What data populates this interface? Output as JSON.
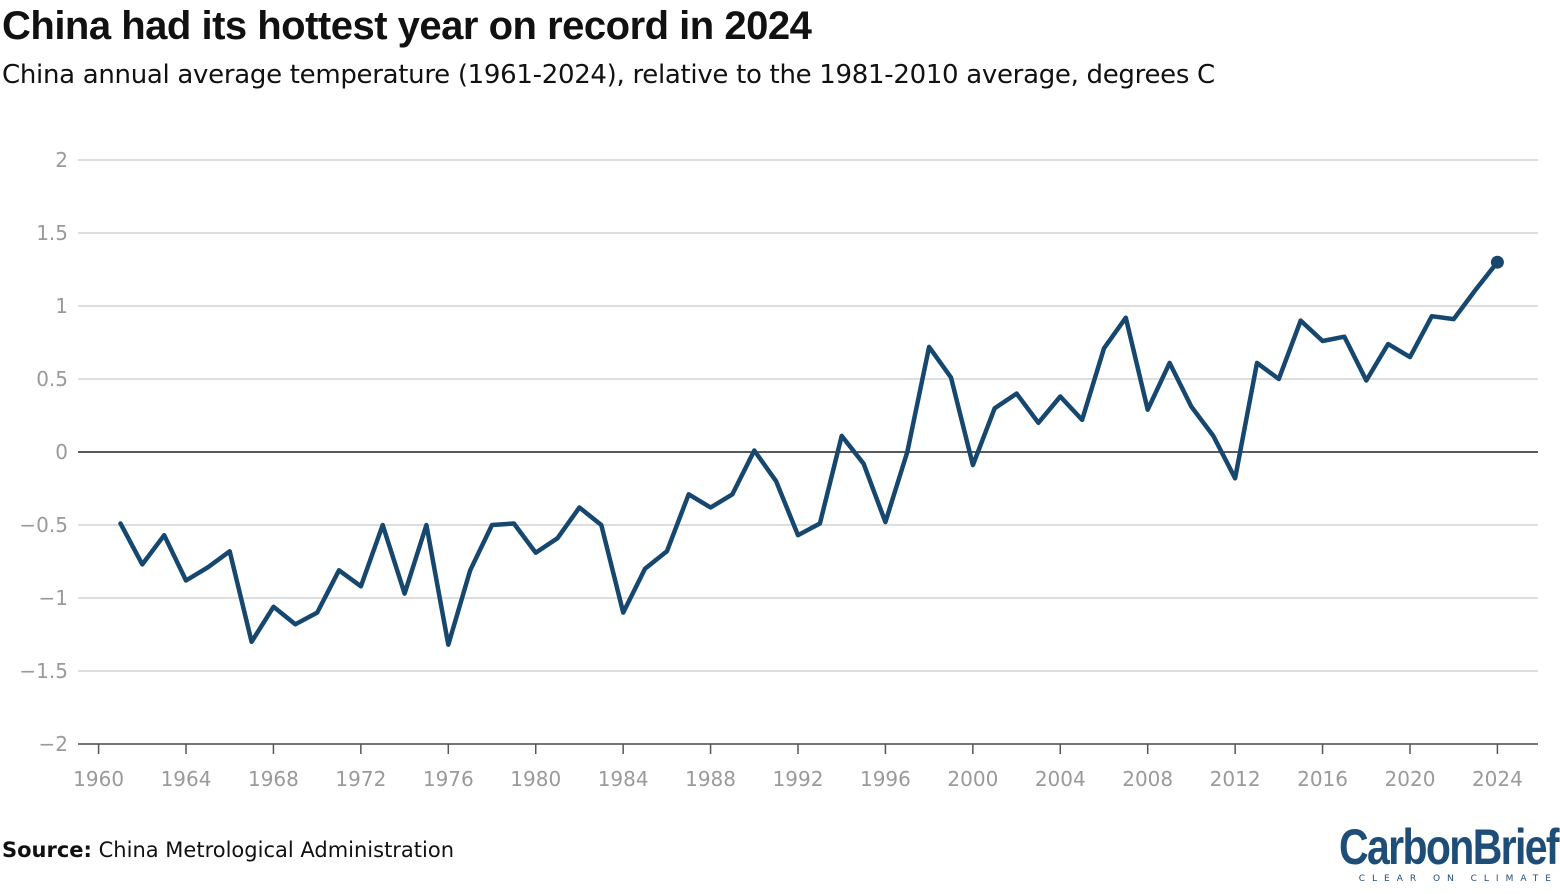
{
  "page": {
    "title": "China had its hottest year on record in 2024",
    "subtitle": "China annual average temperature (1961-2024), relative to the 1981-2010 average, degrees C",
    "source_label": "Source:",
    "source_text": "China Metrological Administration",
    "logo_text": "CarbonBrief",
    "logo_tagline": "CLEAR ON CLIMATE"
  },
  "colors": {
    "series": "#16476f",
    "grid": "#dddddd",
    "zero_line": "#222222",
    "tick_text": "#9a9a9a",
    "logo": "#1e4d78"
  },
  "chart_data": {
    "type": "line",
    "title": "China had its hottest year on record in 2024",
    "subtitle": "China annual average temperature (1961-2024), relative to the 1981-2010 average, degrees C",
    "xlabel": "",
    "ylabel": "",
    "xlim": [
      1959,
      2026
    ],
    "ylim": [
      -2,
      2
    ],
    "grid": true,
    "y_ticks": [
      2,
      1.5,
      1,
      0.5,
      0,
      -0.5,
      -1,
      -1.5,
      -2
    ],
    "y_tick_labels": [
      "2",
      "1.5",
      "1",
      "0.5",
      "0",
      "−0.5",
      "−1",
      "−1.5",
      "−2"
    ],
    "x_ticks": [
      1960,
      1964,
      1968,
      1972,
      1976,
      1980,
      1984,
      1988,
      1992,
      1996,
      2000,
      2004,
      2008,
      2012,
      2016,
      2020,
      2024
    ],
    "series": [
      {
        "name": "China annual average temperature anomaly",
        "x": [
          1961,
          1962,
          1963,
          1964,
          1965,
          1966,
          1967,
          1968,
          1969,
          1970,
          1971,
          1972,
          1973,
          1974,
          1975,
          1976,
          1977,
          1978,
          1979,
          1980,
          1981,
          1982,
          1983,
          1984,
          1985,
          1986,
          1987,
          1988,
          1989,
          1990,
          1991,
          1992,
          1993,
          1994,
          1995,
          1996,
          1997,
          1998,
          1999,
          2000,
          2001,
          2002,
          2003,
          2004,
          2005,
          2006,
          2007,
          2008,
          2009,
          2010,
          2011,
          2012,
          2013,
          2014,
          2015,
          2016,
          2017,
          2018,
          2019,
          2020,
          2021,
          2022,
          2023,
          2024
        ],
        "values": [
          -0.49,
          -0.77,
          -0.57,
          -0.88,
          -0.79,
          -0.68,
          -1.3,
          -1.06,
          -1.18,
          -1.1,
          -0.81,
          -0.92,
          -0.5,
          -0.97,
          -0.5,
          -1.32,
          -0.81,
          -0.5,
          -0.49,
          -0.69,
          -0.59,
          -0.38,
          -0.5,
          -1.1,
          -0.8,
          -0.68,
          -0.29,
          -0.38,
          -0.29,
          0.01,
          -0.2,
          -0.57,
          -0.49,
          0.11,
          -0.08,
          -0.48,
          0.0,
          0.72,
          0.51,
          -0.09,
          0.3,
          0.4,
          0.2,
          0.38,
          0.22,
          0.71,
          0.92,
          0.29,
          0.61,
          0.31,
          0.11,
          -0.18,
          0.61,
          0.5,
          0.9,
          0.76,
          0.79,
          0.49,
          0.74,
          0.65,
          0.93,
          0.91,
          1.11,
          1.3
        ]
      }
    ],
    "highlight": {
      "x": 2024,
      "value": 1.3
    }
  }
}
